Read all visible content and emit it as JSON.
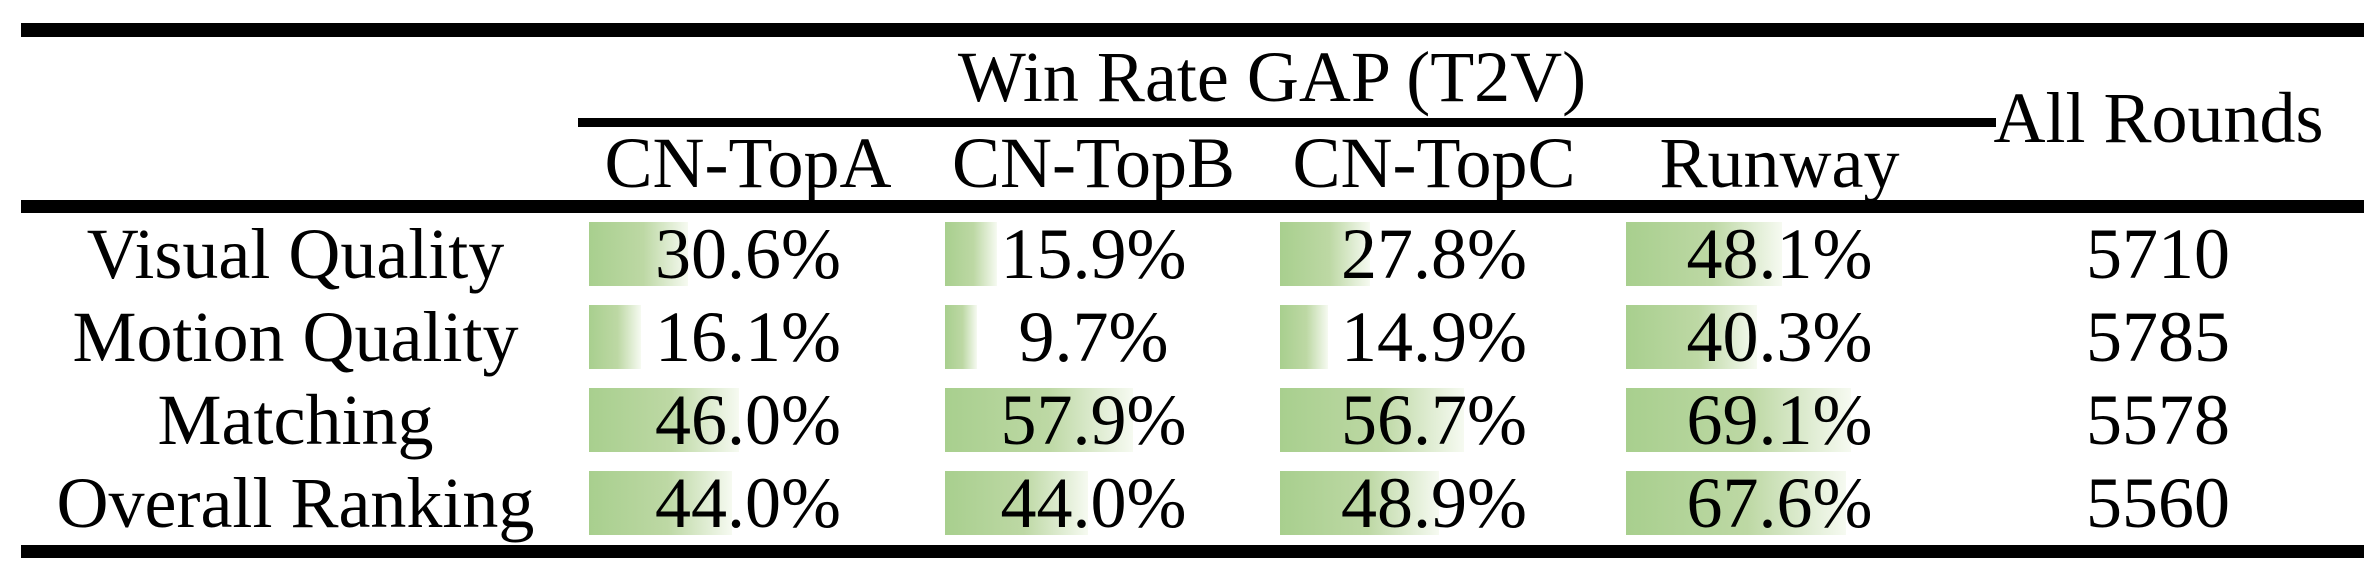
{
  "table": {
    "group_header": "Win Rate GAP (T2V)",
    "all_rounds_header": "All Rounds",
    "columns": [
      "CN-TopA",
      "CN-TopB",
      "CN-TopC",
      "Runway"
    ],
    "rows": [
      {
        "label": "Visual Quality",
        "cells": [
          {
            "text": "30.6%",
            "pct": 30.6
          },
          {
            "text": "15.9%",
            "pct": 15.9
          },
          {
            "text": "27.8%",
            "pct": 27.8
          },
          {
            "text": "48.1%",
            "pct": 48.1
          }
        ],
        "all_rounds": "5710"
      },
      {
        "label": "Motion Quality",
        "cells": [
          {
            "text": "16.1%",
            "pct": 16.1
          },
          {
            "text": "9.7%",
            "pct": 9.7
          },
          {
            "text": "14.9%",
            "pct": 14.9
          },
          {
            "text": "40.3%",
            "pct": 40.3
          }
        ],
        "all_rounds": "5785"
      },
      {
        "label": "Matching",
        "cells": [
          {
            "text": "46.0%",
            "pct": 46.0
          },
          {
            "text": "57.9%",
            "pct": 57.9
          },
          {
            "text": "56.7%",
            "pct": 56.7
          },
          {
            "text": "69.1%",
            "pct": 69.1
          }
        ],
        "all_rounds": "5578"
      },
      {
        "label": "Overall Ranking",
        "cells": [
          {
            "text": "44.0%",
            "pct": 44.0
          },
          {
            "text": "44.0%",
            "pct": 44.0
          },
          {
            "text": "48.9%",
            "pct": 48.9
          },
          {
            "text": "67.6%",
            "pct": 67.6
          }
        ],
        "all_rounds": "5560"
      }
    ]
  },
  "colors": {
    "ink": "#000000",
    "bar_green": "#a8cf8e",
    "bar_green_mid": "#bdd8a4",
    "bar_fade": "#f6faf1"
  }
}
